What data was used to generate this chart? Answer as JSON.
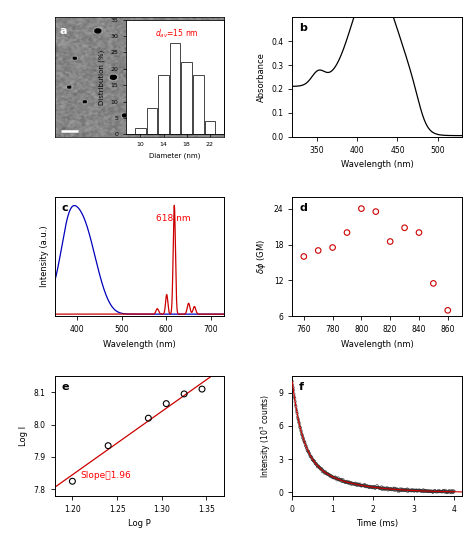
{
  "panel_labels": [
    "a",
    "b",
    "c",
    "d",
    "e",
    "f"
  ],
  "hist_diameters": [
    10,
    12,
    14,
    16,
    18,
    20,
    22
  ],
  "hist_values": [
    2,
    8,
    18,
    28,
    22,
    18,
    4
  ],
  "abs_xlim": [
    320,
    530
  ],
  "abs_ylim": [
    0.0,
    0.5
  ],
  "abs_xticks": [
    350,
    400,
    450,
    500
  ],
  "abs_yticks": [
    0.0,
    0.1,
    0.2,
    0.3,
    0.4
  ],
  "spec_c_xlim": [
    350,
    730
  ],
  "spec_c_xticks": [
    400,
    500,
    600,
    700
  ],
  "spec_c_annotation": "618 nm",
  "spec_d_x": [
    760,
    770,
    780,
    790,
    800,
    810,
    820,
    830,
    840,
    850,
    860
  ],
  "spec_d_y": [
    16.0,
    17.0,
    17.5,
    20.0,
    24.0,
    23.5,
    18.5,
    20.8,
    20.0,
    11.5,
    7.0
  ],
  "spec_d_xlim": [
    752,
    870
  ],
  "spec_d_ylim": [
    6,
    26
  ],
  "spec_d_yticks": [
    6,
    12,
    18,
    24
  ],
  "spec_d_xticks": [
    760,
    780,
    800,
    820,
    840,
    860
  ],
  "log_x": [
    1.2,
    1.24,
    1.285,
    1.305,
    1.325,
    1.345
  ],
  "log_y": [
    7.825,
    7.935,
    8.02,
    8.065,
    8.095,
    8.11
  ],
  "log_fit_slope": 1.96,
  "log_xlim": [
    1.18,
    1.37
  ],
  "log_ylim": [
    7.78,
    8.15
  ],
  "log_xticks": [
    1.2,
    1.25,
    1.3,
    1.35
  ],
  "log_yticks": [
    7.8,
    7.9,
    8.0,
    8.1
  ],
  "decay_xlim": [
    0,
    4.2
  ],
  "decay_ylim": [
    -0.3,
    10.5
  ],
  "decay_yticks": [
    0,
    3,
    6,
    9
  ],
  "decay_xticks": [
    0,
    1,
    2,
    3,
    4
  ],
  "background_color": "#ffffff",
  "line_color": "#000000",
  "blue_color": "#0000bb",
  "red_color": "#cc0000",
  "scatter_color": "#cc0000",
  "bar_edge_color": "#444444"
}
